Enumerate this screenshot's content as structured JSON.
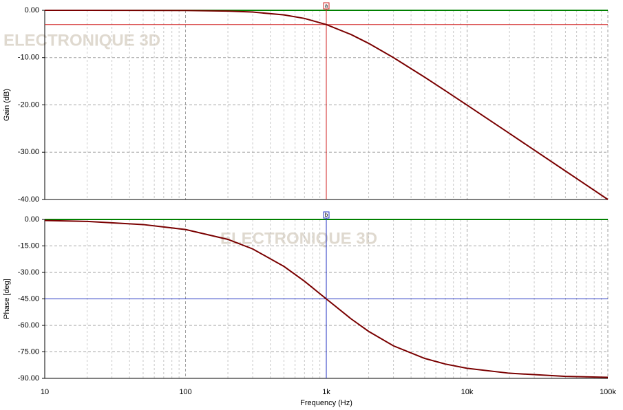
{
  "chart_data": [
    {
      "type": "line",
      "ylabel": "Gain (dB)",
      "watermark": "ELECTRONIQUE 3D",
      "log_x": true,
      "grid": true,
      "x": [
        10,
        20,
        50,
        100,
        200,
        300,
        500,
        700,
        1000,
        1500,
        2000,
        3000,
        5000,
        7000,
        10000,
        20000,
        50000,
        100000
      ],
      "series": [
        {
          "color": "#7a0000",
          "values": [
            0,
            0,
            -0.01,
            -0.04,
            -0.17,
            -0.37,
            -0.97,
            -1.72,
            -3.01,
            -5.12,
            -6.99,
            -10.0,
            -14.15,
            -16.99,
            -20.04,
            -26.03,
            -33.98,
            -40.0
          ]
        }
      ],
      "xlim": [
        10,
        100000
      ],
      "xticks": [
        10,
        100,
        1000,
        10000,
        100000
      ],
      "ylim": [
        -40,
        0
      ],
      "yticks": [
        {
          "value": 0,
          "label": "0.00"
        },
        {
          "value": -10,
          "label": "-10.00"
        },
        {
          "value": -20,
          "label": "-20.00"
        },
        {
          "value": -30,
          "label": "-30.00"
        },
        {
          "value": -40,
          "label": "-40.00"
        }
      ],
      "cursor": {
        "x": 1000,
        "y": -3.01,
        "label": "a",
        "color": "#d02020"
      }
    },
    {
      "type": "line",
      "ylabel": "Phase [deg]",
      "xlabel": "Frequency (Hz)",
      "watermark": "ELECTRONIQUE 3D",
      "log_x": true,
      "grid": true,
      "x": [
        10,
        20,
        50,
        100,
        200,
        300,
        500,
        700,
        1000,
        1500,
        2000,
        3000,
        5000,
        7000,
        10000,
        20000,
        50000,
        100000
      ],
      "series": [
        {
          "color": "#7a0000",
          "values": [
            -0.6,
            -1.1,
            -2.9,
            -5.7,
            -11.3,
            -16.7,
            -26.6,
            -35.0,
            -45.0,
            -56.3,
            -63.4,
            -71.6,
            -78.7,
            -81.9,
            -84.3,
            -87.1,
            -88.9,
            -89.4
          ]
        }
      ],
      "xlim": [
        10,
        100000
      ],
      "xticks": [
        10,
        100,
        {
          "value": 1000,
          "label": "1k"
        },
        {
          "value": 10000,
          "label": "10k"
        },
        {
          "value": 100000,
          "label": "100k"
        }
      ],
      "ylim": [
        -90,
        0
      ],
      "yticks": [
        {
          "value": 0,
          "label": "0.00"
        },
        {
          "value": -15,
          "label": "-15.00"
        },
        {
          "value": -30,
          "label": "-30.00"
        },
        {
          "value": -45,
          "label": "-45.00"
        },
        {
          "value": -60,
          "label": "-60.00"
        },
        {
          "value": -75,
          "label": "-75.00"
        },
        {
          "value": -90,
          "label": "-90.00"
        }
      ],
      "cursor": {
        "x": 1000,
        "y": -45,
        "label": "b",
        "color": "#2030c0"
      }
    }
  ]
}
